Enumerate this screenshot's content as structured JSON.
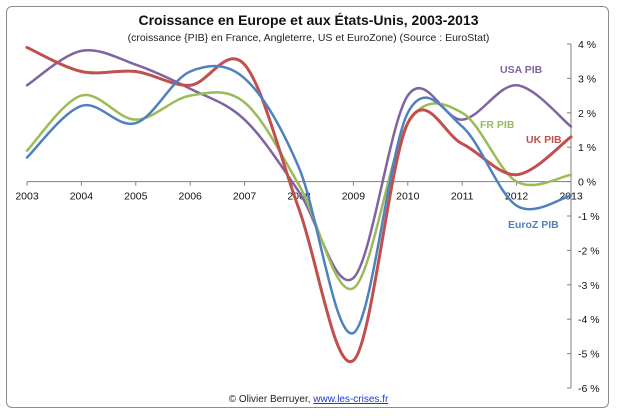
{
  "title": "Croissance en Europe et aux États-Unis, 2003-2013",
  "subtitle": "(croissance {PIB} en France, Angleterre, US et EuroZone) (Source : EuroStat)",
  "footer": {
    "credit": "© Olivier Berruyer, ",
    "link": "www.les-crises.fr"
  },
  "chart_data": {
    "type": "line",
    "smooth": true,
    "x": [
      2003,
      2004,
      2005,
      2006,
      2007,
      2008,
      2009,
      2010,
      2011,
      2012,
      2013
    ],
    "xtick_labels": [
      "2003",
      "2004",
      "2005",
      "2006",
      "2007",
      "2008",
      "2009",
      "2010",
      "2011",
      "2012",
      "2013"
    ],
    "ylim": [
      -6,
      4
    ],
    "ytick_labels": [
      "-6 %",
      "-5 %",
      "-4 %",
      "-3 %",
      "-2 %",
      "-1 %",
      "0 %",
      "1 %",
      "2 %",
      "3 %",
      "4 %"
    ],
    "y_axis_position": "right",
    "grid": false,
    "series": [
      {
        "name": "USA PIB",
        "color": "#8064a2",
        "values": [
          2.8,
          3.8,
          3.4,
          2.7,
          1.8,
          -0.3,
          -2.8,
          2.5,
          1.8,
          2.8,
          1.6
        ]
      },
      {
        "name": "FR PIB",
        "color": "#9bbb59",
        "values": [
          0.9,
          2.5,
          1.8,
          2.5,
          2.3,
          -0.1,
          -3.1,
          1.7,
          2.0,
          0.0,
          0.2
        ]
      },
      {
        "name": "UK PIB",
        "color": "#c0504d",
        "values": [
          3.9,
          3.2,
          3.2,
          2.8,
          3.4,
          -0.8,
          -5.2,
          1.7,
          1.1,
          0.2,
          1.3
        ]
      },
      {
        "name": "EuroZ PIB",
        "color": "#4f81bd",
        "values": [
          0.7,
          2.2,
          1.7,
          3.2,
          3.0,
          0.4,
          -4.4,
          2.0,
          1.6,
          -0.7,
          -0.4
        ]
      }
    ]
  }
}
